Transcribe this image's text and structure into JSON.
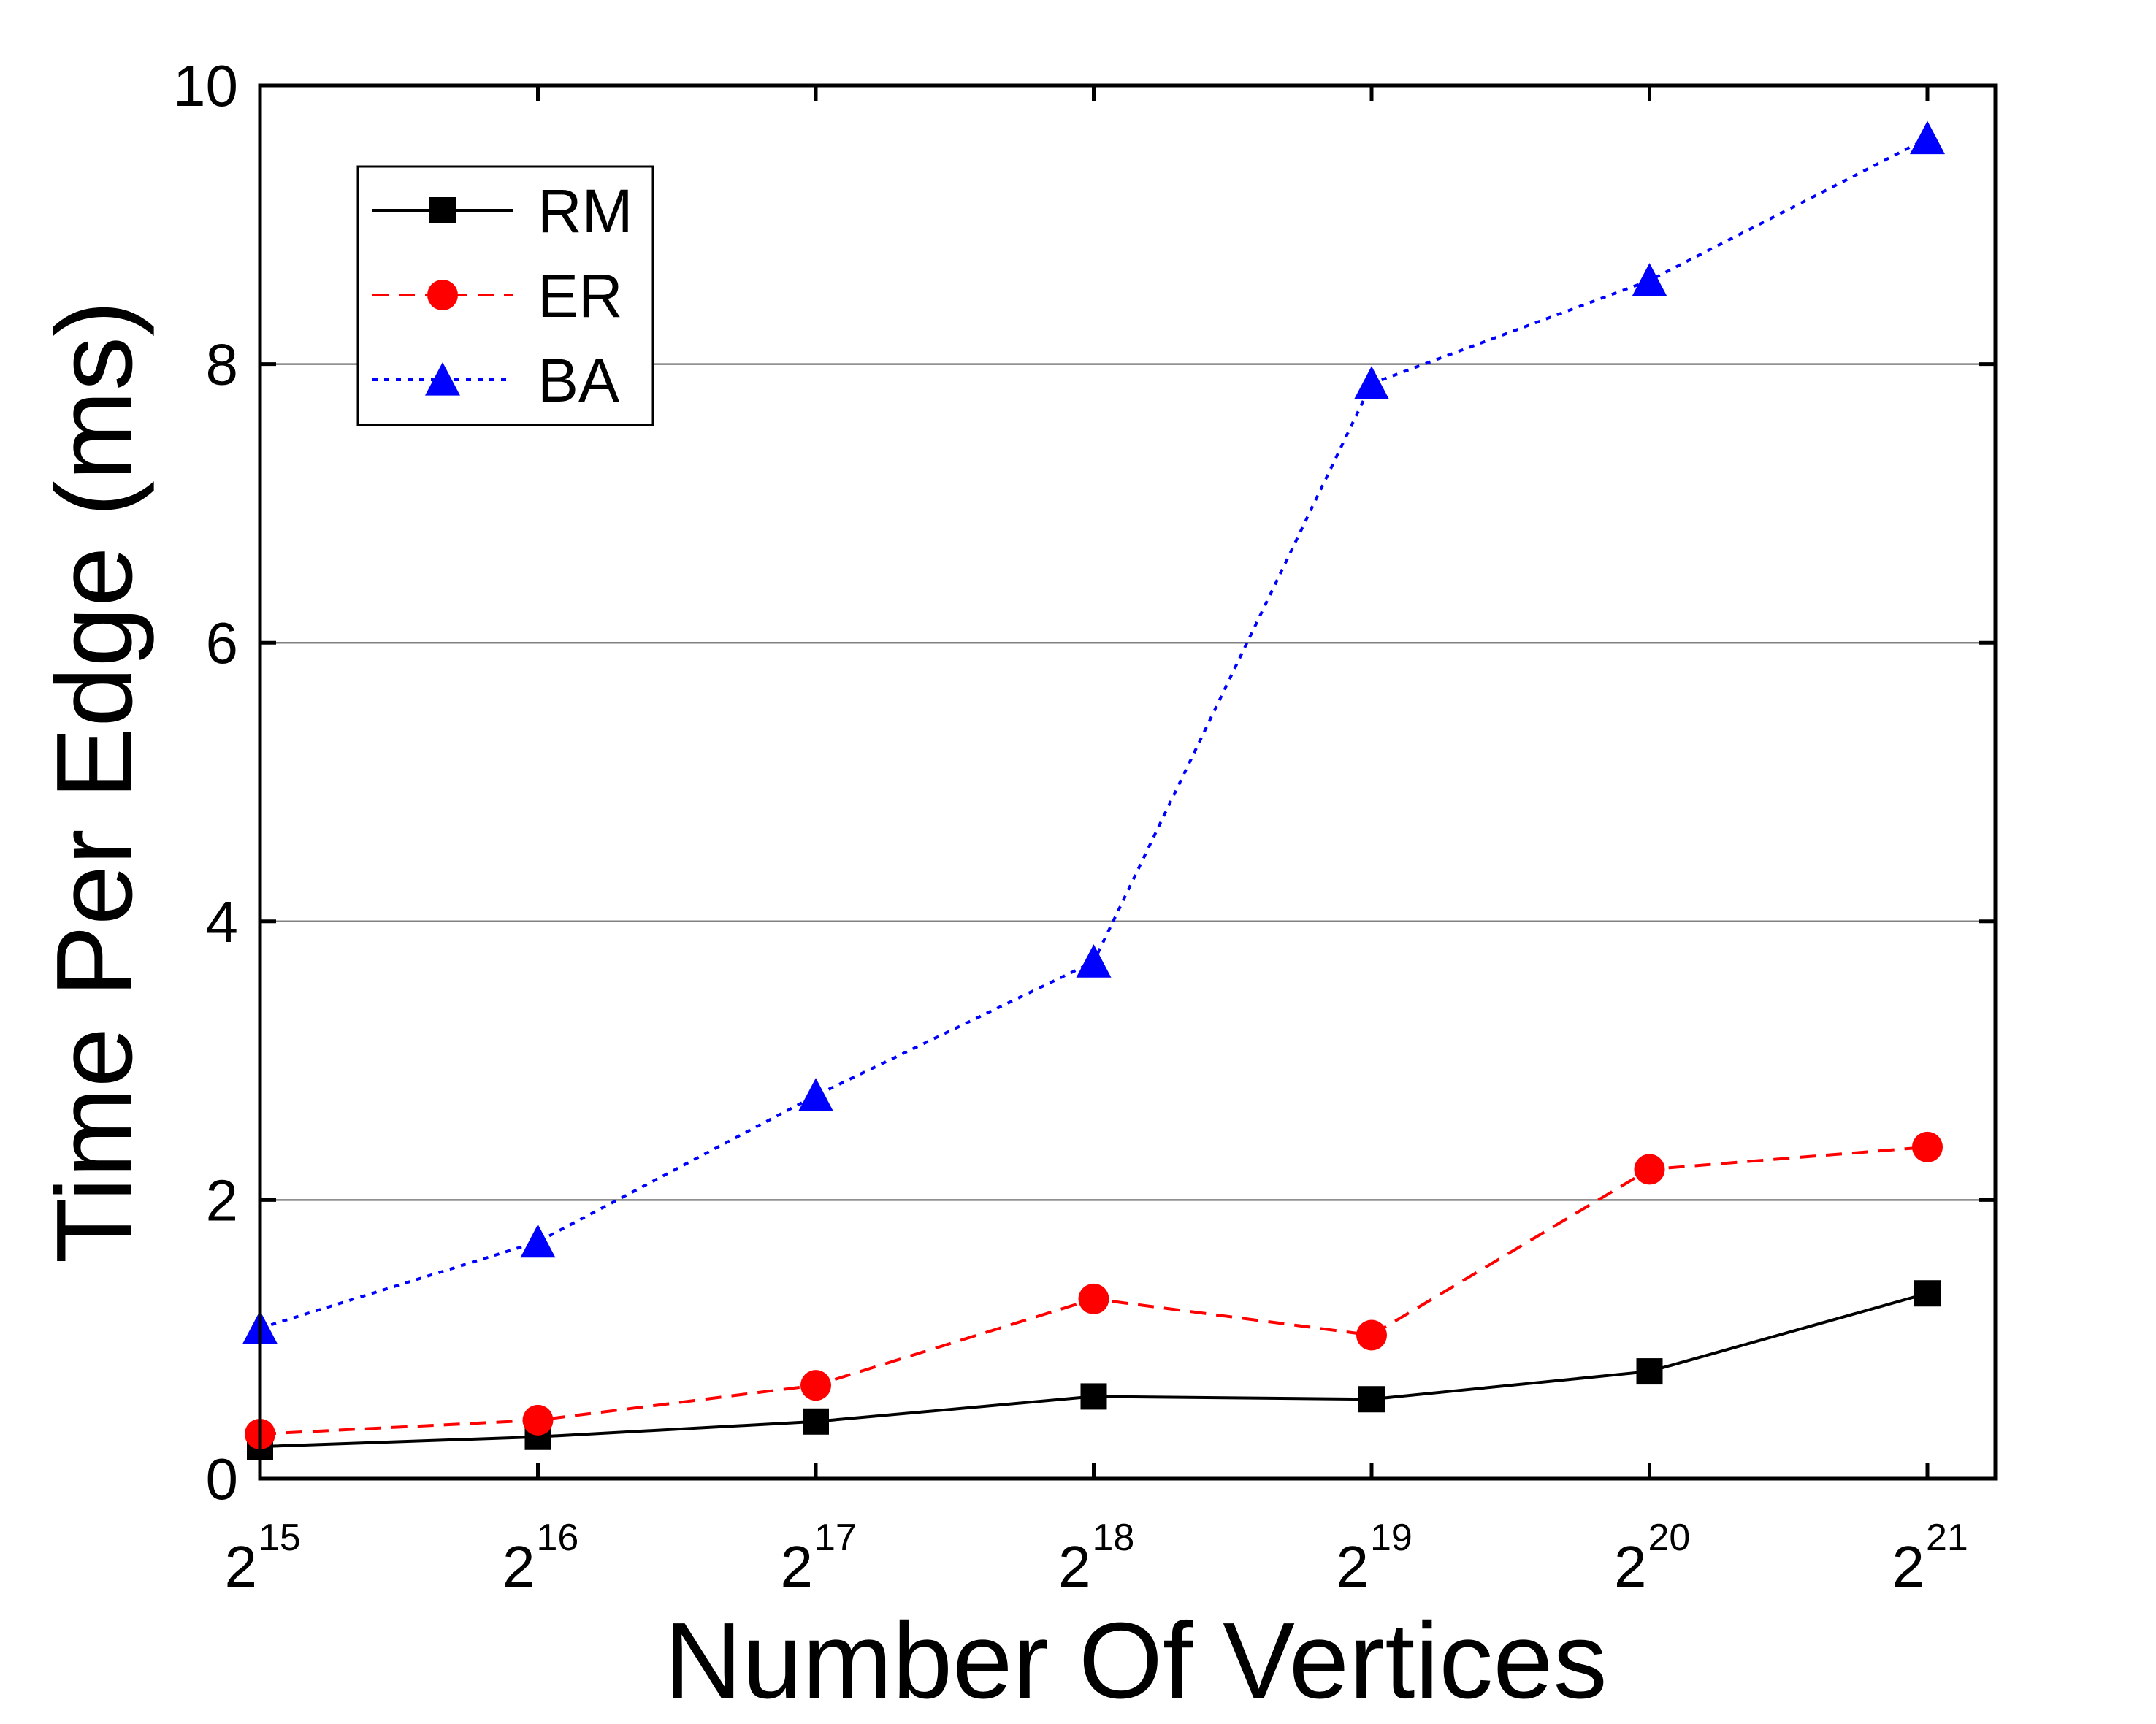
{
  "chart_data": {
    "type": "line",
    "xlabel": "Number Of Vertices",
    "ylabel": "Time Per Edge (ms)",
    "x_base": "2",
    "x_exponents": [
      "15",
      "16",
      "17",
      "18",
      "19",
      "20",
      "21"
    ],
    "ylim": [
      0,
      10
    ],
    "yticks": [
      "0",
      "2",
      "4",
      "6",
      "8",
      "10"
    ],
    "grid": "horizontal at y = 2, 4, 6, 8",
    "legend_position": "top-left",
    "series": [
      {
        "name": "RM",
        "color": "#000000",
        "marker": "square",
        "line_style": "solid",
        "values": [
          0.23,
          0.3,
          0.41,
          0.59,
          0.57,
          0.77,
          1.33
        ]
      },
      {
        "name": "ER",
        "color": "#ff0000",
        "marker": "circle",
        "line_style": "dashed",
        "values": [
          0.32,
          0.42,
          0.67,
          1.29,
          1.03,
          2.22,
          2.38
        ]
      },
      {
        "name": "BA",
        "color": "#0000ff",
        "marker": "triangle",
        "line_style": "dotted",
        "values": [
          1.08,
          1.7,
          2.75,
          3.71,
          7.86,
          8.6,
          9.62
        ]
      }
    ]
  }
}
